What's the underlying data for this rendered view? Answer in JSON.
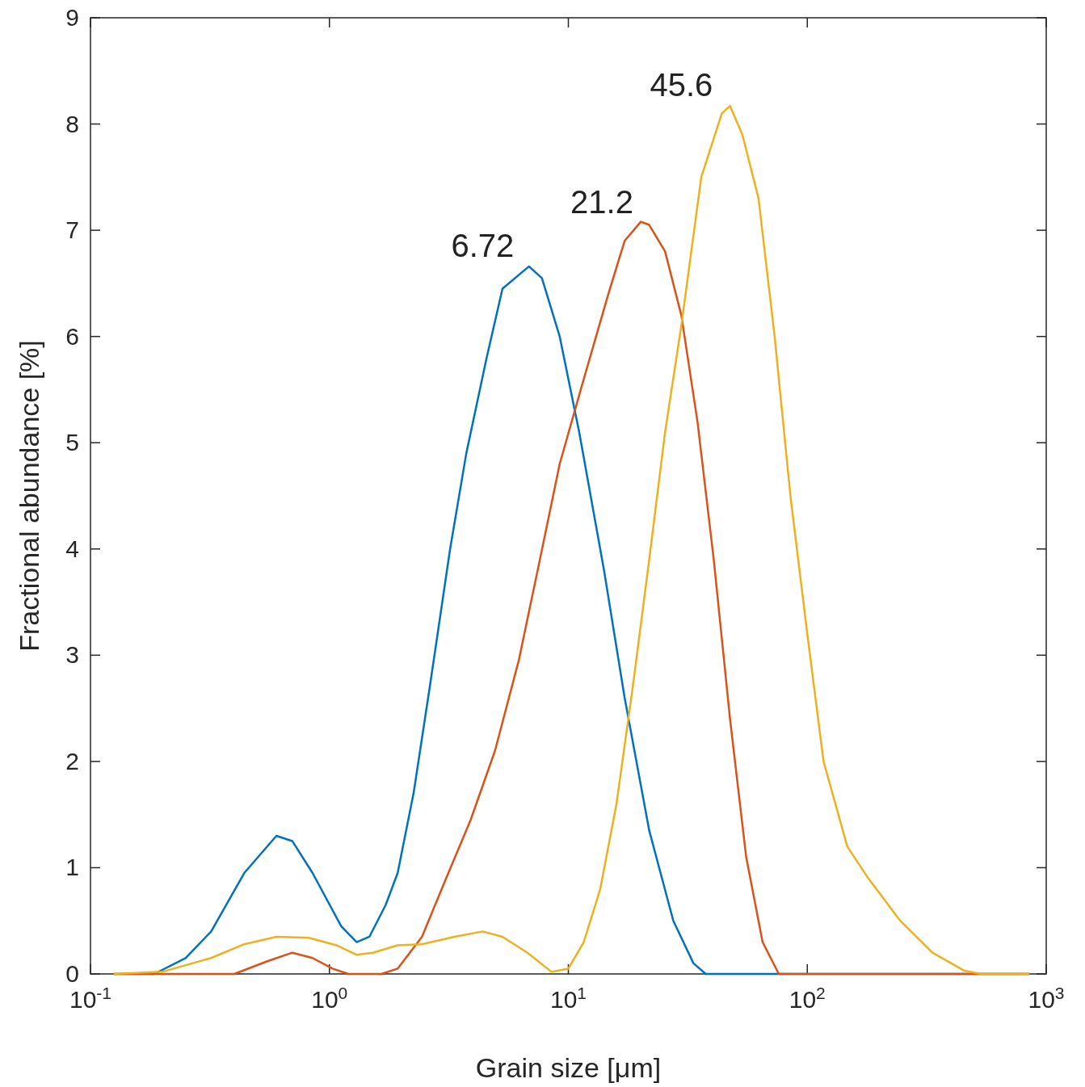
{
  "chart_data": {
    "type": "line",
    "xlabel": "Grain size [μm]",
    "ylabel": "Fractional abundance [%]",
    "log": "x",
    "grid": false,
    "line_style": "solid",
    "xlim": [
      0.1,
      1000
    ],
    "xticks": [
      {
        "value": 0.1,
        "label": "10$^{-1}$"
      },
      {
        "value": 1,
        "label": "10$^{0}$"
      },
      {
        "value": 10,
        "label": "10$^{1}$"
      },
      {
        "value": 100,
        "label": "10$^{2}$"
      },
      {
        "value": 1000,
        "label": "10$^{3}$"
      }
    ],
    "ylim": [
      0,
      9
    ],
    "yticks": [
      0,
      1,
      2,
      3,
      4,
      5,
      6,
      7,
      8,
      9
    ],
    "annotations": [
      {
        "text": "6.72",
        "x": 6.72,
        "y": 6.66
      },
      {
        "text": "21.2",
        "x": 21.2,
        "y": 7.07
      },
      {
        "text": "45.6",
        "x": 45.6,
        "y": 8.17
      }
    ],
    "series": [
      {
        "color": "#0072bd",
        "x": [
          0.125,
          0.185,
          0.25,
          0.32,
          0.44,
          0.6,
          0.7,
          0.85,
          1.12,
          1.3,
          1.47,
          1.72,
          1.93,
          2.25,
          2.63,
          3.2,
          3.74,
          4.55,
          5.3,
          6.84,
          7.75,
          9.2,
          11.1,
          14.1,
          17.2,
          21.8,
          27.5,
          33.4,
          37.6,
          850
        ],
        "values": [
          0,
          0,
          0.15,
          0.4,
          0.95,
          1.3,
          1.25,
          0.95,
          0.45,
          0.3,
          0.35,
          0.65,
          0.95,
          1.7,
          2.7,
          4.0,
          4.9,
          5.8,
          6.45,
          6.66,
          6.55,
          6.0,
          5.1,
          3.8,
          2.6,
          1.35,
          0.5,
          0.1,
          0,
          0
        ]
      },
      {
        "color": "#d95319",
        "x": [
          0.125,
          0.4,
          0.55,
          0.7,
          0.85,
          1.03,
          1.2,
          1.65,
          1.93,
          2.44,
          3.08,
          3.9,
          4.93,
          6.2,
          7.6,
          9.2,
          11.6,
          14.7,
          17.2,
          20.1,
          21.8,
          25.4,
          29.7,
          34.7,
          40.6,
          47.5,
          55.5,
          65,
          76,
          850
        ],
        "values": [
          0,
          0,
          0.12,
          0.2,
          0.15,
          0.05,
          0,
          0,
          0.05,
          0.35,
          0.9,
          1.45,
          2.1,
          2.95,
          3.9,
          4.8,
          5.6,
          6.4,
          6.9,
          7.08,
          7.05,
          6.8,
          6.2,
          5.2,
          3.9,
          2.4,
          1.1,
          0.3,
          0,
          0
        ]
      },
      {
        "color": "#edb120",
        "x": [
          0.125,
          0.2,
          0.32,
          0.44,
          0.6,
          0.82,
          1.07,
          1.3,
          1.52,
          1.93,
          2.44,
          3.33,
          4.38,
          5.3,
          6.74,
          8.5,
          10,
          11.6,
          13.6,
          15.9,
          18.6,
          21.8,
          25.4,
          29.7,
          36,
          43.9,
          47.5,
          53.5,
          62.5,
          73,
          85,
          100,
          117,
          147,
          180,
          245,
          334,
          455,
          533,
          850
        ],
        "values": [
          0,
          0.02,
          0.15,
          0.28,
          0.35,
          0.34,
          0.27,
          0.18,
          0.2,
          0.27,
          0.28,
          0.35,
          0.4,
          0.35,
          0.2,
          0.02,
          0.05,
          0.3,
          0.8,
          1.6,
          2.7,
          3.9,
          5.1,
          6.1,
          7.5,
          8.1,
          8.17,
          7.9,
          7.3,
          6.0,
          4.5,
          3.2,
          2.0,
          1.2,
          0.9,
          0.5,
          0.2,
          0.03,
          0,
          0
        ]
      }
    ]
  }
}
